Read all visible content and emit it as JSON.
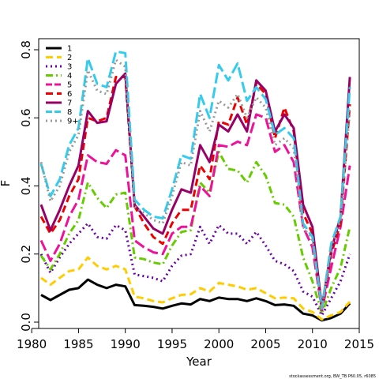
{
  "chart_data": {
    "type": "line",
    "xlabel": "Year",
    "ylabel": "F",
    "xlim": [
      1980,
      2015
    ],
    "ylim": [
      0,
      0.8
    ],
    "x_ticks": [
      "1980",
      "1985",
      "1990",
      "1995",
      "2000",
      "2005",
      "2010",
      "2015"
    ],
    "y_ticks": [
      "0.0",
      "0.2",
      "0.4",
      "0.6",
      "0.8"
    ],
    "legend_position": "top-left",
    "footnote": "stockassessment.org, BW_TB P60.05, r6085",
    "x": [
      1981,
      1982,
      1983,
      1984,
      1985,
      1986,
      1987,
      1988,
      1989,
      1990,
      1991,
      1992,
      1993,
      1994,
      1995,
      1996,
      1997,
      1998,
      1999,
      2000,
      2001,
      2002,
      2003,
      2004,
      2005,
      2006,
      2007,
      2008,
      2009,
      2010,
      2011,
      2012,
      2013,
      2014
    ],
    "series": [
      {
        "name": "1",
        "color": "#000000",
        "dash": "solid",
        "values": [
          0.08,
          0.065,
          0.08,
          0.095,
          0.1,
          0.125,
          0.11,
          0.1,
          0.11,
          0.105,
          0.05,
          0.048,
          0.045,
          0.04,
          0.048,
          0.055,
          0.052,
          0.068,
          0.062,
          0.072,
          0.068,
          0.068,
          0.062,
          0.07,
          0.062,
          0.05,
          0.052,
          0.048,
          0.025,
          0.02,
          0.005,
          0.012,
          0.025,
          0.055
        ]
      },
      {
        "name": "2",
        "color": "#ffcc00",
        "dash": "dashed",
        "values": [
          0.13,
          0.11,
          0.13,
          0.15,
          0.155,
          0.19,
          0.165,
          0.155,
          0.165,
          0.155,
          0.075,
          0.07,
          0.062,
          0.058,
          0.07,
          0.08,
          0.082,
          0.1,
          0.09,
          0.115,
          0.11,
          0.105,
          0.095,
          0.1,
          0.085,
          0.07,
          0.072,
          0.07,
          0.04,
          0.03,
          0.008,
          0.02,
          0.03,
          0.06
        ]
      },
      {
        "name": "3",
        "color": "#6a00a8",
        "dash": "dotted",
        "values": [
          0.2,
          0.145,
          0.19,
          0.23,
          0.26,
          0.29,
          0.25,
          0.245,
          0.285,
          0.27,
          0.14,
          0.135,
          0.13,
          0.12,
          0.165,
          0.195,
          0.2,
          0.28,
          0.23,
          0.285,
          0.26,
          0.26,
          0.23,
          0.265,
          0.225,
          0.18,
          0.17,
          0.15,
          0.09,
          0.075,
          0.02,
          0.07,
          0.12,
          0.2
        ]
      },
      {
        "name": "4",
        "color": "#66cc00",
        "dash": "dashdot",
        "values": [
          0.195,
          0.155,
          0.2,
          0.26,
          0.3,
          0.41,
          0.365,
          0.335,
          0.375,
          0.38,
          0.19,
          0.185,
          0.175,
          0.17,
          0.225,
          0.265,
          0.27,
          0.41,
          0.38,
          0.5,
          0.45,
          0.445,
          0.41,
          0.47,
          0.43,
          0.35,
          0.345,
          0.31,
          0.19,
          0.12,
          0.025,
          0.1,
          0.16,
          0.28
        ]
      },
      {
        "name": "5",
        "color": "#ee1199",
        "dash": "longdash",
        "values": [
          0.24,
          0.18,
          0.23,
          0.31,
          0.36,
          0.49,
          0.47,
          0.465,
          0.505,
          0.49,
          0.24,
          0.22,
          0.205,
          0.2,
          0.26,
          0.28,
          0.28,
          0.4,
          0.37,
          0.52,
          0.515,
          0.53,
          0.52,
          0.61,
          0.6,
          0.5,
          0.52,
          0.47,
          0.28,
          0.22,
          0.035,
          0.16,
          0.28,
          0.46
        ]
      },
      {
        "name": "6",
        "color": "#ee0000",
        "dash": "dashed",
        "values": [
          0.31,
          0.26,
          0.3,
          0.37,
          0.42,
          0.6,
          0.59,
          0.6,
          0.72,
          0.72,
          0.34,
          0.29,
          0.25,
          0.23,
          0.29,
          0.33,
          0.33,
          0.46,
          0.42,
          0.59,
          0.58,
          0.66,
          0.58,
          0.7,
          0.67,
          0.54,
          0.63,
          0.56,
          0.32,
          0.26,
          0.04,
          0.2,
          0.29,
          0.64
        ]
      },
      {
        "name": "7",
        "color": "#990066",
        "dash": "solid",
        "values": [
          0.345,
          0.27,
          0.33,
          0.4,
          0.46,
          0.62,
          0.585,
          0.59,
          0.7,
          0.73,
          0.345,
          0.31,
          0.275,
          0.26,
          0.33,
          0.39,
          0.38,
          0.52,
          0.47,
          0.58,
          0.56,
          0.61,
          0.56,
          0.71,
          0.68,
          0.56,
          0.61,
          0.57,
          0.345,
          0.28,
          0.045,
          0.21,
          0.31,
          0.72
        ]
      },
      {
        "name": "8",
        "color": "#33ccee",
        "dash": "longdash",
        "values": [
          0.465,
          0.37,
          0.42,
          0.52,
          0.57,
          0.775,
          0.7,
          0.69,
          0.795,
          0.79,
          0.36,
          0.33,
          0.31,
          0.305,
          0.39,
          0.49,
          0.48,
          0.67,
          0.6,
          0.755,
          0.71,
          0.76,
          0.65,
          0.69,
          0.655,
          0.55,
          0.57,
          0.54,
          0.29,
          0.25,
          0.04,
          0.23,
          0.31,
          0.69
        ]
      },
      {
        "name": "9+",
        "color": "#999999",
        "dash": "dotted",
        "values": [
          0.47,
          0.355,
          0.4,
          0.5,
          0.55,
          0.74,
          0.68,
          0.67,
          0.77,
          0.75,
          0.34,
          0.32,
          0.3,
          0.29,
          0.37,
          0.47,
          0.46,
          0.62,
          0.56,
          0.65,
          0.63,
          0.67,
          0.6,
          0.66,
          0.63,
          0.52,
          0.54,
          0.51,
          0.28,
          0.24,
          0.04,
          0.22,
          0.3,
          0.62
        ]
      }
    ]
  }
}
